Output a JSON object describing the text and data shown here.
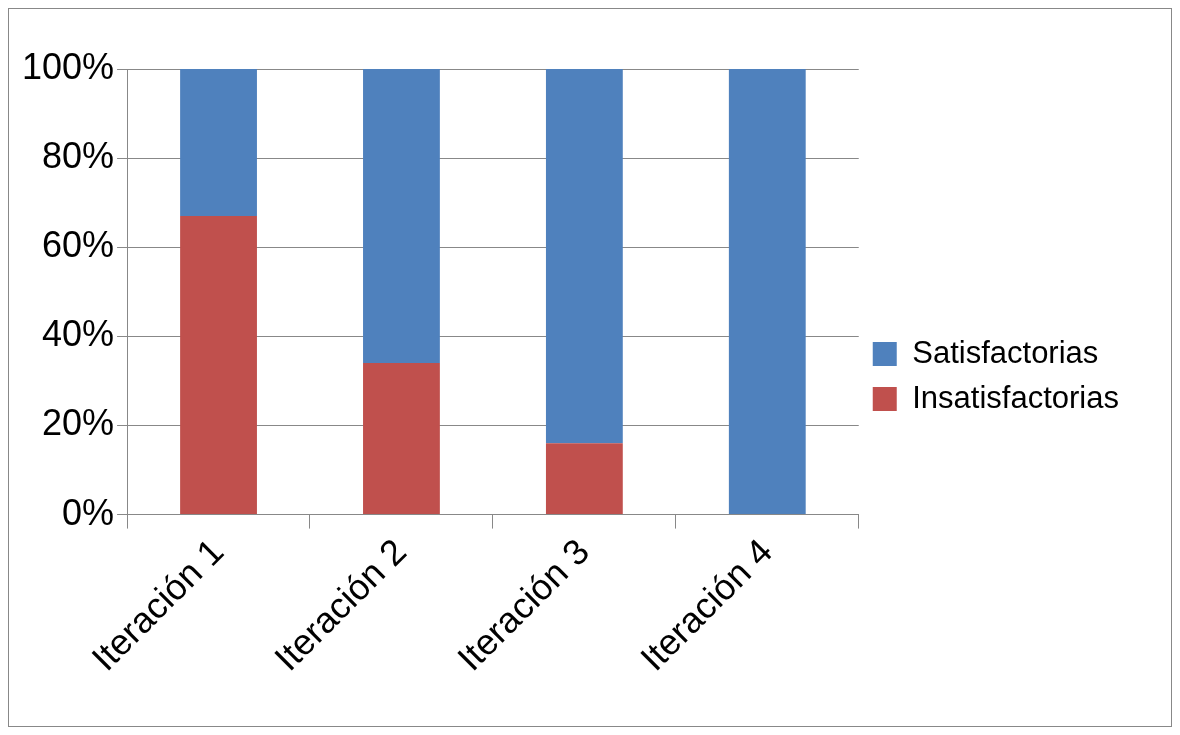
{
  "chart_data": {
    "type": "bar",
    "stacked": true,
    "categories": [
      "Iteración 1",
      "Iteración 2",
      "Iteración 3",
      "Iteración 4"
    ],
    "series": [
      {
        "name": "Insatisfactorias",
        "color": "#c0504d",
        "values": [
          67,
          34,
          16,
          0
        ]
      },
      {
        "name": "Satisfactorias",
        "color": "#4f81bd",
        "values": [
          33,
          66,
          84,
          100
        ]
      }
    ],
    "ylim": [
      0,
      100
    ],
    "yticks": [
      {
        "value": 0,
        "label": "0%"
      },
      {
        "value": 20,
        "label": "20%"
      },
      {
        "value": 40,
        "label": "40%"
      },
      {
        "value": 60,
        "label": "60%"
      },
      {
        "value": 80,
        "label": "80%"
      },
      {
        "value": 100,
        "label": "100%"
      }
    ],
    "grid": "y",
    "legend": "right"
  }
}
